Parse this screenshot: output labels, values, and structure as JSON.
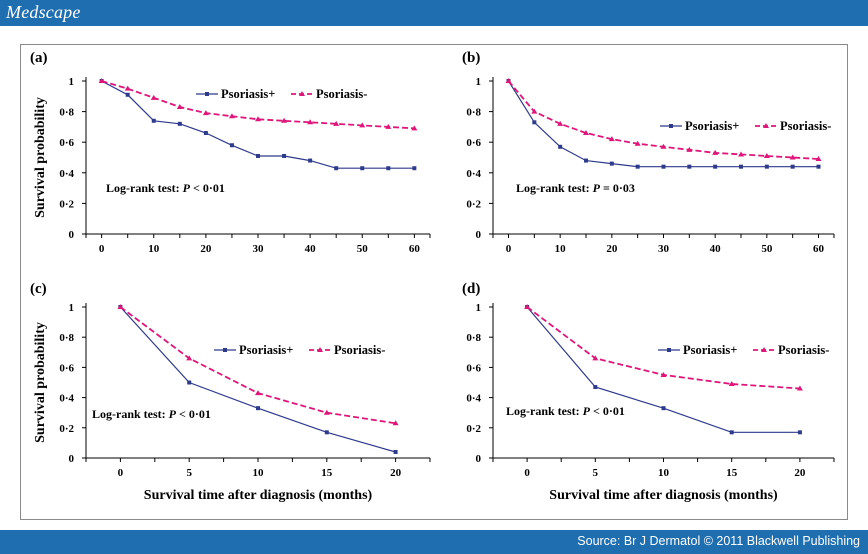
{
  "header": {
    "brand": "Medscape"
  },
  "footer": {
    "source": "Source: Br J Dermatol © 2011 Blackwell Publishing"
  },
  "colors": {
    "psoriasis_plus": "#2e3a8c",
    "psoriasis_minus": "#e0157a",
    "header_bar": "#1f6fb0"
  },
  "shared_xlabel": "Survival time after diagnosis (months)",
  "shared_ylabel": "Survival probability",
  "chart_data": [
    {
      "type": "line",
      "panel_label": "(a)",
      "xticks": [
        0,
        10,
        20,
        30,
        40,
        50,
        60
      ],
      "yticks": [
        "0",
        "0·2",
        "0·4",
        "0·6",
        "0·8",
        "1"
      ],
      "xlim": [
        -3,
        63
      ],
      "ylim": [
        0,
        1
      ],
      "ylabel": "Survival probability",
      "xlabel": "",
      "annotation": {
        "prefix": "Log-rank test: ",
        "italic": "P",
        "suffix": " < 0·01"
      },
      "legend_position": "top-right",
      "series": [
        {
          "name": "Psoriasis+",
          "x": [
            0,
            5,
            10,
            15,
            20,
            25,
            30,
            35,
            40,
            45,
            50,
            55,
            60
          ],
          "y": [
            1.0,
            0.91,
            0.74,
            0.72,
            0.66,
            0.58,
            0.51,
            0.51,
            0.48,
            0.43,
            0.43,
            0.43,
            0.43
          ]
        },
        {
          "name": "Psoriasis-",
          "x": [
            0,
            5,
            10,
            15,
            20,
            25,
            30,
            35,
            40,
            45,
            50,
            55,
            60
          ],
          "y": [
            1.0,
            0.95,
            0.89,
            0.83,
            0.79,
            0.77,
            0.75,
            0.74,
            0.73,
            0.72,
            0.71,
            0.7,
            0.69
          ]
        }
      ]
    },
    {
      "type": "line",
      "panel_label": "(b)",
      "xticks": [
        0,
        10,
        20,
        30,
        40,
        50,
        60
      ],
      "yticks": [
        "0",
        "0·2",
        "0·4",
        "0·6",
        "0·8",
        "1"
      ],
      "xlim": [
        -3,
        63
      ],
      "ylim": [
        0,
        1
      ],
      "ylabel": "",
      "xlabel": "",
      "annotation": {
        "prefix": "Log-rank test: ",
        "italic": "P",
        "suffix": " = 0·03"
      },
      "legend_position": "center-right",
      "series": [
        {
          "name": "Psoriasis+",
          "x": [
            0,
            5,
            10,
            15,
            20,
            25,
            30,
            35,
            40,
            45,
            50,
            55,
            60
          ],
          "y": [
            1.0,
            0.73,
            0.57,
            0.48,
            0.46,
            0.44,
            0.44,
            0.44,
            0.44,
            0.44,
            0.44,
            0.44,
            0.44
          ]
        },
        {
          "name": "Psoriasis-",
          "x": [
            0,
            5,
            10,
            15,
            20,
            25,
            30,
            35,
            40,
            45,
            50,
            55,
            60
          ],
          "y": [
            1.0,
            0.8,
            0.72,
            0.66,
            0.62,
            0.59,
            0.57,
            0.55,
            0.53,
            0.52,
            0.51,
            0.5,
            0.49
          ]
        }
      ]
    },
    {
      "type": "line",
      "panel_label": "(c)",
      "xticks": [
        0,
        5,
        10,
        15,
        20
      ],
      "yticks": [
        "0",
        "0·2",
        "0·4",
        "0·6",
        "0·8",
        "1"
      ],
      "xlim": [
        -2.5,
        22.5
      ],
      "ylim": [
        0,
        1
      ],
      "ylabel": "Survival probability",
      "xlabel": "Survival time after diagnosis (months)",
      "annotation": {
        "prefix": "Log-rank test: ",
        "italic": "P",
        "suffix": " < 0·01"
      },
      "legend_position": "center-right",
      "series": [
        {
          "name": "Psoriasis+",
          "x": [
            0,
            5,
            10,
            15,
            20
          ],
          "y": [
            1.0,
            0.5,
            0.33,
            0.17,
            0.04
          ]
        },
        {
          "name": "Psoriasis-",
          "x": [
            0,
            5,
            10,
            15,
            20
          ],
          "y": [
            1.0,
            0.66,
            0.43,
            0.3,
            0.23
          ]
        }
      ]
    },
    {
      "type": "line",
      "panel_label": "(d)",
      "xticks": [
        0,
        5,
        10,
        15,
        20
      ],
      "yticks": [
        "0",
        "0·2",
        "0·4",
        "0·6",
        "0·8",
        "1"
      ],
      "xlim": [
        -2.5,
        22.5
      ],
      "ylim": [
        0,
        1
      ],
      "ylabel": "",
      "xlabel": "Survival time after diagnosis (months)",
      "annotation": {
        "prefix": "Log-rank test: ",
        "italic": "P",
        "suffix": " < 0·01"
      },
      "legend_position": "top-right",
      "series": [
        {
          "name": "Psoriasis+",
          "x": [
            0,
            5,
            10,
            15,
            20
          ],
          "y": [
            1.0,
            0.47,
            0.33,
            0.17,
            0.17
          ]
        },
        {
          "name": "Psoriasis-",
          "x": [
            0,
            5,
            10,
            15,
            20
          ],
          "y": [
            1.0,
            0.66,
            0.55,
            0.49,
            0.46
          ]
        }
      ]
    }
  ]
}
